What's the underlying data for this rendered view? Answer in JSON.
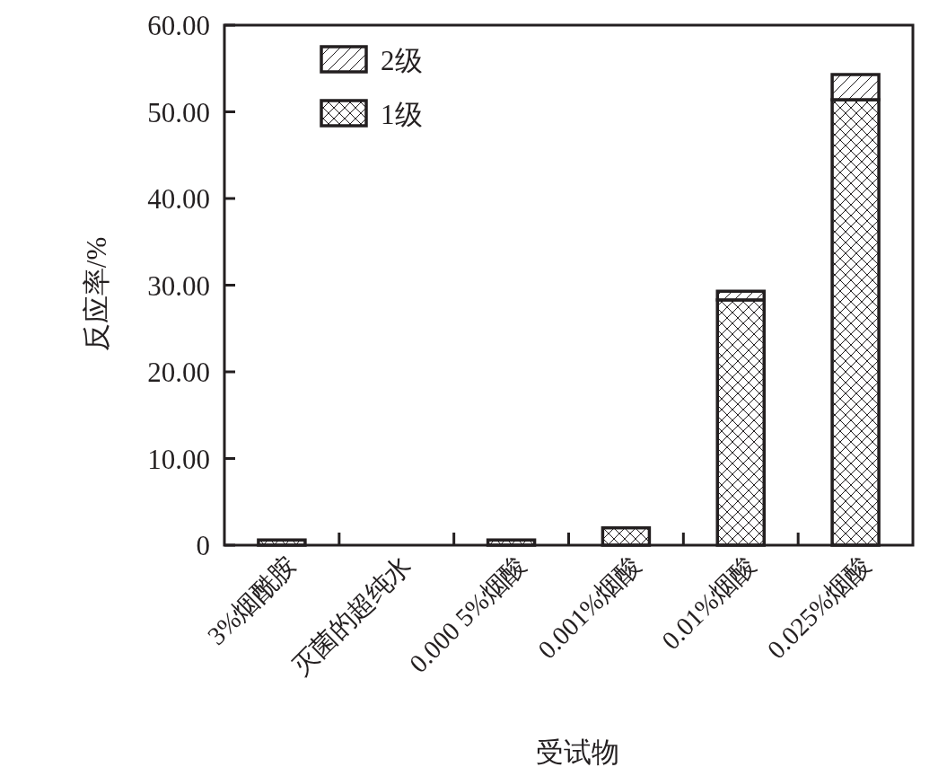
{
  "chart_data": {
    "type": "bar",
    "stacked": true,
    "xlabel": "受试物",
    "ylabel": "反应率/%",
    "categories": [
      "3%烟酰胺",
      "灭菌的超纯水",
      "0.000 5%烟酸",
      "0.001%烟酸",
      "0.01%烟酸",
      "0.025%烟酸"
    ],
    "series": [
      {
        "name": "1级",
        "color": "#231f20",
        "values": [
          0.6,
          0,
          0.6,
          2.0,
          28.3,
          51.4
        ]
      },
      {
        "name": "2级",
        "color": "#231f20",
        "values": [
          0,
          0,
          0,
          0,
          1.0,
          2.9
        ]
      }
    ],
    "ylim": [
      0,
      60
    ],
    "yticks": [
      0,
      {
        "value": 10,
        "label": "10.00"
      },
      {
        "value": 20,
        "label": "20.00"
      },
      {
        "value": 30,
        "label": "30.00"
      },
      {
        "value": 40,
        "label": "40.00"
      },
      {
        "value": 50,
        "label": "50.00"
      },
      {
        "value": 60,
        "label": "60.00"
      }
    ],
    "legend": "top left"
  }
}
